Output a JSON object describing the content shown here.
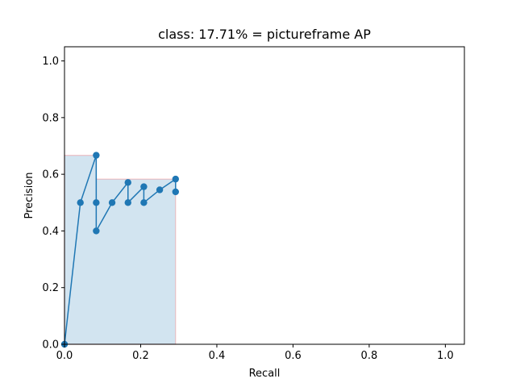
{
  "chart_data": {
    "type": "line",
    "title": "class: 17.71% = pictureframe AP",
    "xlabel": "Recall",
    "ylabel": "Precision",
    "xlim": [
      0.0,
      1.05
    ],
    "ylim": [
      0.0,
      1.05
    ],
    "xticks": [
      0.0,
      0.2,
      0.4,
      0.6,
      0.8,
      1.0
    ],
    "yticks": [
      0.0,
      0.2,
      0.4,
      0.6,
      0.8,
      1.0
    ],
    "xtick_labels": [
      "0.0",
      "0.2",
      "0.4",
      "0.6",
      "0.8",
      "1.0"
    ],
    "ytick_labels": [
      "0.0",
      "0.2",
      "0.4",
      "0.6",
      "0.8",
      "1.0"
    ],
    "grid": false,
    "series": [
      {
        "x": [
          0.0,
          0.0417,
          0.0833,
          0.0833,
          0.0833,
          0.125,
          0.1667,
          0.1667,
          0.2083,
          0.2083,
          0.25,
          0.2917,
          0.2917
        ],
        "y": [
          0.0,
          0.5,
          0.667,
          0.5,
          0.4,
          0.5,
          0.571,
          0.5,
          0.556,
          0.5,
          0.545,
          0.583,
          0.538
        ],
        "color": "#1f77b4",
        "marker": "circle"
      }
    ],
    "interpolated_area": {
      "x": [
        0.0,
        0.0833,
        0.0833,
        0.2917,
        0.2917
      ],
      "y": [
        0.667,
        0.667,
        0.583,
        0.583,
        0.0
      ],
      "fill_color": "#1f77b4",
      "fill_opacity": 0.2,
      "edge_color": "#ff0000",
      "edge_opacity": 0.2
    }
  }
}
